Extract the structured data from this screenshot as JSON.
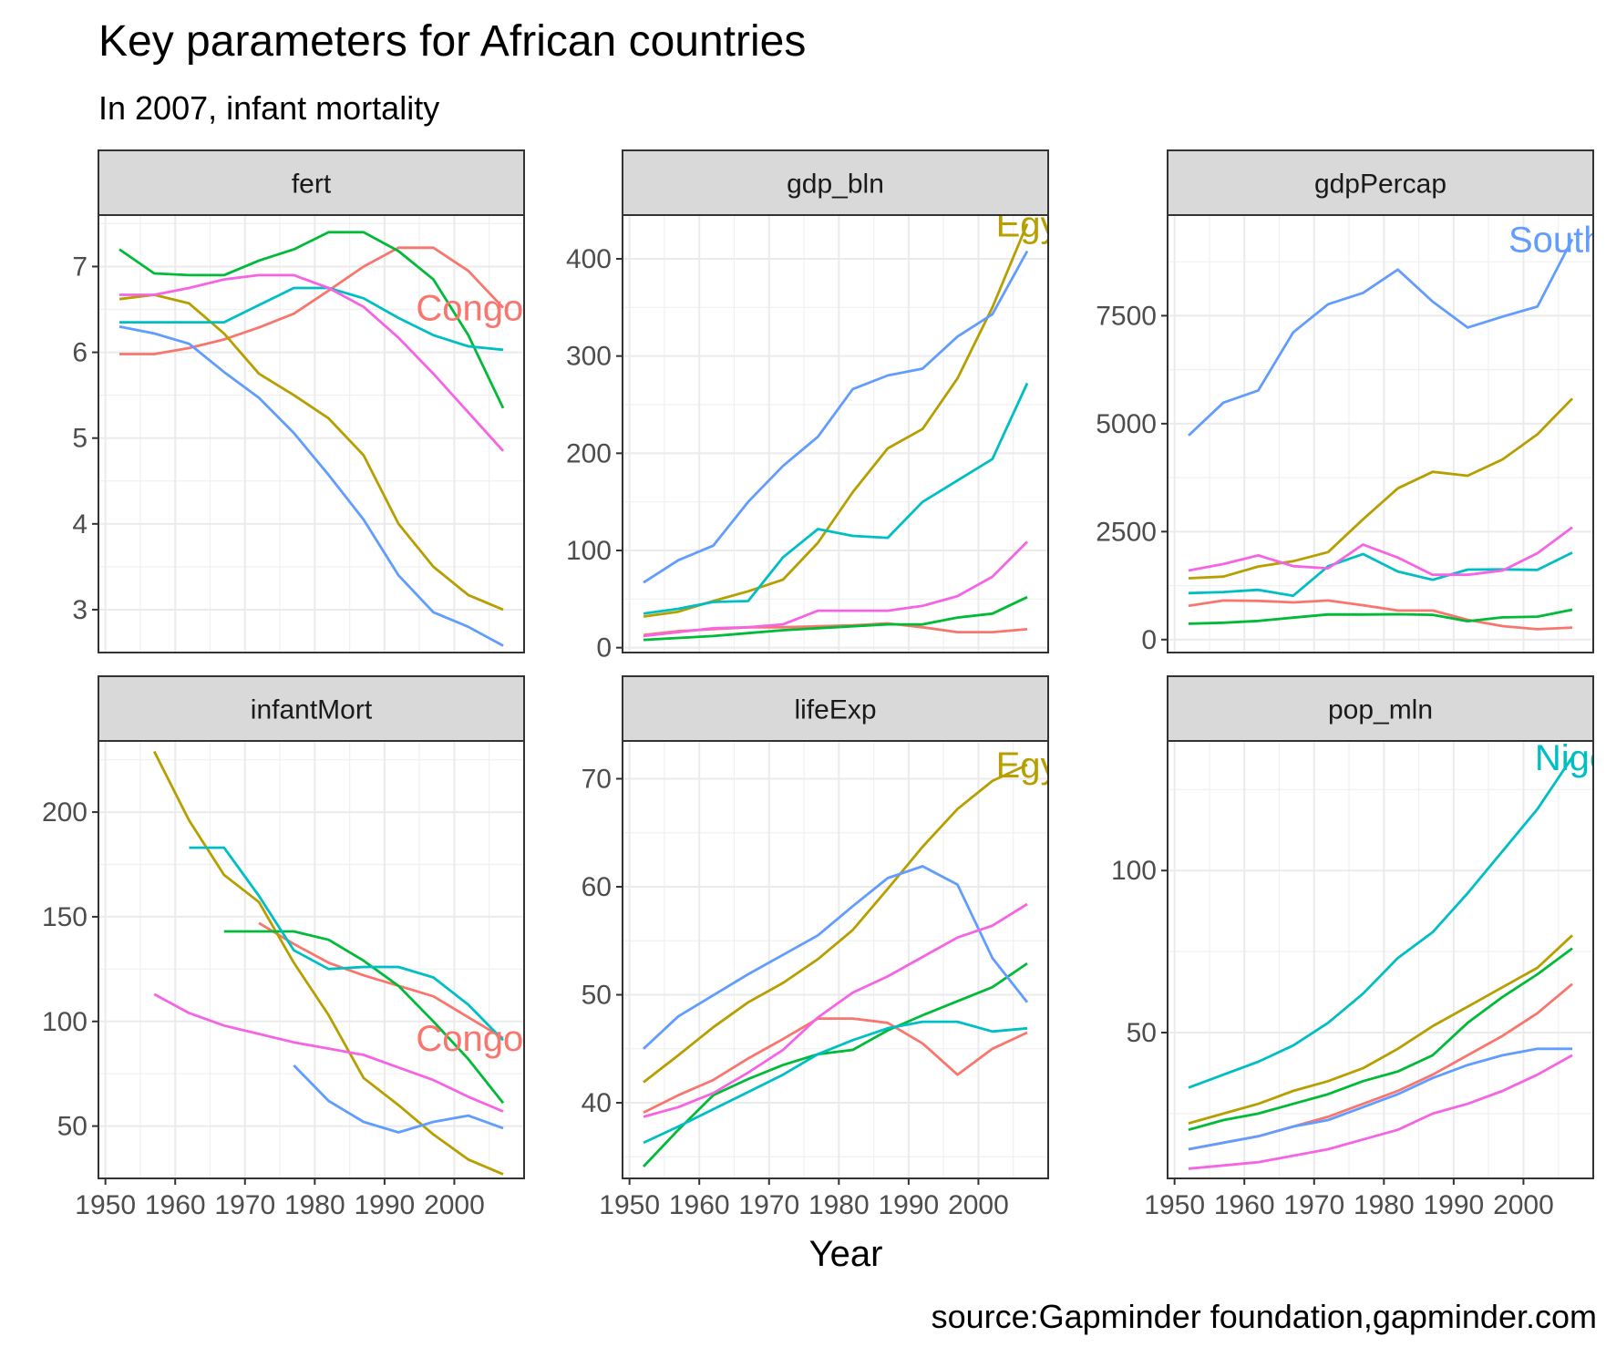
{
  "title": "Key parameters for African countries",
  "subtitle": "In 2007, infant mortality",
  "x_axis_title": "Year",
  "caption": "source:Gapminder foundation,gapminder.com",
  "chart_data": {
    "type": "line",
    "facets": [
      "fert",
      "gdp_bln",
      "gdpPercap",
      "infantMort",
      "lifeExp",
      "pop_mln"
    ],
    "x": [
      1952,
      1957,
      1962,
      1967,
      1972,
      1977,
      1982,
      1987,
      1992,
      1997,
      2002,
      2007
    ],
    "x_ticks": [
      1950,
      1960,
      1970,
      1980,
      1990,
      2000
    ],
    "xlim": [
      1949,
      2010
    ],
    "colors": [
      "#F8766D",
      "#B79F00",
      "#00BA38",
      "#00BFC4",
      "#619CFF",
      "#F564E3"
    ],
    "panels": [
      {
        "name": "fert",
        "ylim": [
          2.5,
          7.6
        ],
        "y_ticks": [
          3,
          4,
          5,
          6,
          7
        ],
        "label": "Congo, De",
        "label_series": 0,
        "series": [
          {
            "values": [
              5.98,
              5.98,
              6.05,
              6.15,
              6.29,
              6.45,
              6.72,
              7.0,
              7.22,
              7.22,
              6.95,
              6.52
            ]
          },
          {
            "values": [
              6.62,
              6.67,
              6.57,
              6.22,
              5.75,
              5.5,
              5.23,
              4.8,
              4.0,
              3.5,
              3.17,
              3.0
            ]
          },
          {
            "values": [
              7.2,
              6.92,
              6.9,
              6.9,
              7.07,
              7.2,
              7.4,
              7.4,
              7.18,
              6.85,
              6.2,
              5.35
            ]
          },
          {
            "values": [
              6.35,
              6.35,
              6.35,
              6.35,
              6.55,
              6.75,
              6.75,
              6.63,
              6.4,
              6.2,
              6.07,
              6.03
            ]
          },
          {
            "values": [
              6.3,
              6.22,
              6.1,
              5.77,
              5.47,
              5.06,
              4.57,
              4.05,
              3.4,
              2.97,
              2.8,
              2.58
            ]
          },
          {
            "values": [
              6.67,
              6.67,
              6.75,
              6.85,
              6.9,
              6.9,
              6.75,
              6.53,
              6.17,
              5.75,
              5.3,
              4.85
            ]
          }
        ]
      },
      {
        "name": "gdp_bln",
        "ylim": [
          -5,
          445
        ],
        "y_ticks": [
          0,
          100,
          200,
          300,
          400
        ],
        "label": "Egy",
        "label_series": 1,
        "series": [
          {
            "values": [
              13,
              17,
              19,
              21,
              21,
              22,
              23,
              25,
              21,
              16,
              16,
              19
            ]
          },
          {
            "values": [
              32,
              37,
              48,
              58,
              70,
              108,
              160,
              205,
              225,
              277,
              350,
              436
            ]
          },
          {
            "values": [
              8,
              10,
              12,
              15,
              18,
              20,
              22,
              24,
              24,
              31,
              35,
              52
            ]
          },
          {
            "values": [
              35,
              40,
              47,
              48,
              93,
              122,
              115,
              113,
              150,
              172,
              194,
              272
            ]
          },
          {
            "values": [
              67,
              90,
              105,
              150,
              187,
              217,
              266,
              280,
              287,
              320,
              343,
              408
            ]
          },
          {
            "values": [
              12,
              16,
              20,
              21,
              24,
              38,
              38,
              38,
              43,
              53,
              73,
              109
            ]
          }
        ]
      },
      {
        "name": "gdpPercap",
        "ylim": [
          -300,
          9830
        ],
        "y_ticks": [
          0,
          2500,
          5000,
          7500
        ],
        "label": "South A",
        "label_series": 4,
        "series": [
          {
            "values": [
              780,
              905,
              896,
              861,
              905,
              796,
              673,
              672,
              457,
              313,
              241,
              278
            ]
          },
          {
            "values": [
              1419,
              1459,
              1693,
              1815,
              2025,
              2785,
              3504,
              3885,
              3795,
              4173,
              4755,
              5581
            ]
          },
          {
            "values": [
              367,
              390,
              432,
              509,
              582,
              581,
              587,
              573,
              427,
              515,
              531,
              692
            ]
          },
          {
            "values": [
              1077,
              1101,
              1151,
              1015,
              1698,
              1982,
              1576,
              1385,
              1620,
              1625,
              1615,
              2014
            ]
          },
          {
            "values": [
              4725,
              5487,
              5769,
              7114,
              7765,
              8028,
              8568,
              7826,
              7225,
              7479,
              7711,
              9270
            ]
          },
          {
            "values": [
              1600,
              1750,
              1950,
              1700,
              1650,
              2200,
              1900,
              1500,
              1500,
              1600,
              2000,
              2600
            ]
          }
        ]
      },
      {
        "name": "infantMort",
        "ylim": [
          25,
          234
        ],
        "y_ticks": [
          50,
          100,
          150,
          200
        ],
        "label": "Congo, De",
        "label_series": 0,
        "series": [
          {
            "values": [
              null,
              null,
              null,
              null,
              147,
              137,
              128,
              122,
              117,
              112,
              102,
              92
            ]
          },
          {
            "values": [
              null,
              229,
              196,
              170,
              157,
              128,
              103,
              73,
              60,
              46,
              34,
              27
            ]
          },
          {
            "values": [
              null,
              null,
              null,
              143,
              143,
              143,
              139,
              129,
              117,
              100,
              82,
              61
            ]
          },
          {
            "values": [
              null,
              null,
              183,
              183,
              160,
              134,
              125,
              126,
              126,
              121,
              108,
              91
            ]
          },
          {
            "values": [
              null,
              null,
              null,
              null,
              null,
              79,
              62,
              52,
              47,
              52,
              55,
              49
            ]
          },
          {
            "values": [
              null,
              113,
              104,
              98,
              94,
              90,
              87,
              84,
              78,
              72,
              64,
              57
            ]
          }
        ]
      },
      {
        "name": "lifeExp",
        "ylim": [
          33,
          73.5
        ],
        "y_ticks": [
          40,
          50,
          60,
          70
        ],
        "label": "Egy",
        "label_series": 1,
        "series": [
          {
            "values": [
              39.1,
              40.7,
              42.1,
              44.1,
              45.9,
              47.8,
              47.8,
              47.4,
              45.5,
              42.6,
              45.0,
              46.5
            ]
          },
          {
            "values": [
              41.9,
              44.4,
              46.99,
              49.3,
              51.1,
              53.3,
              56.0,
              59.8,
              63.7,
              67.2,
              69.8,
              71.3
            ]
          },
          {
            "values": [
              34.1,
              37.5,
              40.7,
              42.2,
              43.5,
              44.5,
              44.9,
              46.7,
              48.1,
              49.4,
              50.7,
              52.9
            ]
          },
          {
            "values": [
              36.3,
              37.8,
              39.4,
              41.0,
              42.6,
              44.5,
              45.8,
              46.9,
              47.5,
              47.5,
              46.6,
              46.9
            ]
          },
          {
            "values": [
              45.0,
              48.0,
              49.95,
              51.9,
              53.7,
              55.5,
              58.2,
              60.8,
              61.9,
              60.2,
              53.4,
              49.3
            ]
          },
          {
            "values": [
              38.7,
              39.6,
              40.9,
              42.8,
              44.9,
              47.9,
              50.2,
              51.7,
              53.5,
              55.3,
              56.4,
              58.4
            ]
          }
        ]
      },
      {
        "name": "pop_mln",
        "ylim": [
          5,
          140
        ],
        "y_ticks": [
          50,
          100
        ],
        "label": "Nige",
        "label_series": 3,
        "series": [
          {
            "values": [
              14,
              16,
              18,
              21,
              24,
              28,
              32,
              37,
              43,
              49,
              56,
              65
            ]
          },
          {
            "values": [
              22,
              25,
              28,
              32,
              35,
              39,
              45,
              52,
              58,
              64,
              70,
              80
            ]
          },
          {
            "values": [
              20,
              23,
              25,
              28,
              31,
              35,
              38,
              43,
              53,
              61,
              68,
              76
            ]
          },
          {
            "values": [
              33,
              37,
              41,
              46,
              53,
              62,
              73,
              81,
              93,
              106,
              119,
              135
            ]
          },
          {
            "values": [
              14,
              16,
              18,
              21,
              23,
              27,
              31,
              36,
              40,
              43,
              45,
              45
            ]
          },
          {
            "values": [
              8,
              9,
              10,
              12,
              14,
              17,
              20,
              25,
              28,
              32,
              37,
              43
            ]
          }
        ]
      }
    ]
  }
}
